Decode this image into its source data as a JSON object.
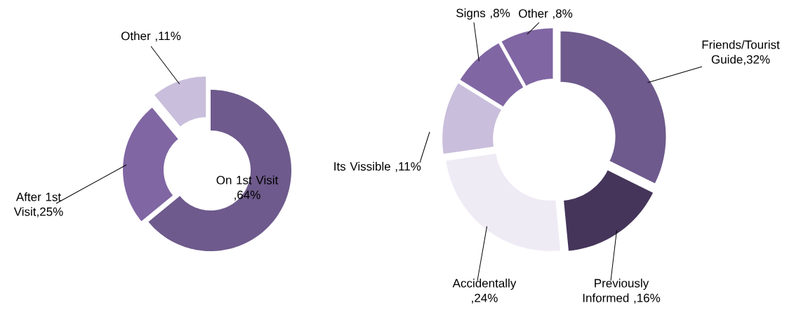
{
  "chart_data": [
    {
      "type": "donut",
      "categories": [
        "On 1st Visit",
        "After 1st Visit",
        "Other"
      ],
      "values": [
        64,
        25,
        11
      ],
      "value_labels": [
        ",64%",
        ",25%",
        " ,11%"
      ],
      "colors": [
        "#6e5a8c",
        "#8066a3",
        "#c9bedb"
      ]
    },
    {
      "type": "donut",
      "categories": [
        "Friends/Tourist Guide",
        "Previously Informed",
        "Accidentally",
        "Its Vissible",
        "Signs",
        "Other"
      ],
      "values": [
        32,
        16,
        24,
        11,
        8,
        8
      ],
      "value_labels": [
        ",32%",
        " ,16%",
        ",24%",
        " ,11%",
        " ,8%",
        " ,8%"
      ],
      "colors": [
        "#6e5a8c",
        "#45355a",
        "#efebf5",
        "#c9bedb",
        "#8066a3",
        "#8066a3"
      ]
    }
  ]
}
